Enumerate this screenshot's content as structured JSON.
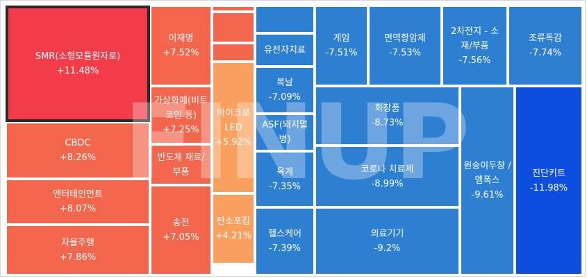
{
  "chart_data": {
    "type": "treemap",
    "watermark": "FINUP",
    "colors": {
      "up_strong": "#f4414b",
      "up": "#f3664e",
      "up_mid": "#f58a4f",
      "up_light": "#f9a05e",
      "down": "#2d7fd1",
      "down_strong": "#0d4ee0"
    },
    "items": [
      {
        "name": "SMR(소형모듈원자로)",
        "change": "+11.48%",
        "value": 11.48,
        "color": "#f23c49",
        "selected": true
      },
      {
        "name": "CBDC",
        "change": "+8.26%",
        "value": 8.26,
        "color": "#f3664e"
      },
      {
        "name": "엔터테인먼트",
        "change": "+8.07%",
        "value": 8.07,
        "color": "#f3664e"
      },
      {
        "name": "자율주행",
        "change": "+7.86%",
        "value": 7.86,
        "color": "#f3664e"
      },
      {
        "name": "이재명",
        "change": "+7.52%",
        "value": 7.52,
        "color": "#f3664e"
      },
      {
        "name": "가상화폐(비트코인 등)",
        "change": "+7.25%",
        "value": 7.25,
        "color": "#f3664e"
      },
      {
        "name": "반도체 재료/부품",
        "change": "",
        "value": null,
        "color": "#f3664e"
      },
      {
        "name": "송전",
        "change": "+7.05%",
        "value": 7.05,
        "color": "#f3664e"
      },
      {
        "name": "",
        "change": "",
        "value": null,
        "color": "#f3664e"
      },
      {
        "name": "",
        "change": "",
        "value": null,
        "color": "#f3664e"
      },
      {
        "name": "",
        "change": "",
        "value": null,
        "color": "#f3664e"
      },
      {
        "name": "마이크로LED",
        "change": "+5.92%",
        "value": 5.92,
        "color": "#f9a05e"
      },
      {
        "name": "탄소포집",
        "change": "+4.21%",
        "value": 4.21,
        "color": "#f9a05e"
      },
      {
        "name": "",
        "change": "",
        "value": null,
        "color": "#2d7fd1"
      },
      {
        "name": "유전자치료",
        "change": "",
        "value": null,
        "color": "#2d7fd1"
      },
      {
        "name": "복날",
        "change": "-7.09%",
        "value": -7.09,
        "color": "#2d7fd1"
      },
      {
        "name": "ASF(돼지열병)",
        "change": "",
        "value": null,
        "color": "#2d7fd1"
      },
      {
        "name": "육계",
        "change": "-7.35%",
        "value": -7.35,
        "color": "#2d7fd1"
      },
      {
        "name": "헬스케어",
        "change": "-7.39%",
        "value": -7.39,
        "color": "#2d7fd1"
      },
      {
        "name": "게임",
        "change": "-7.51%",
        "value": -7.51,
        "color": "#2d7fd1"
      },
      {
        "name": "면역항암제",
        "change": "-7.53%",
        "value": -7.53,
        "color": "#2d7fd1"
      },
      {
        "name": "2차전지 - 소재/부품",
        "change": "-7.56%",
        "value": -7.56,
        "color": "#2d7fd1"
      },
      {
        "name": "조류독감",
        "change": "-7.74%",
        "value": -7.74,
        "color": "#2d7fd1"
      },
      {
        "name": "화장품",
        "change": "-8.73%",
        "value": -8.73,
        "color": "#2d7fd1"
      },
      {
        "name": "코로나 치료제",
        "change": "-8.99%",
        "value": -8.99,
        "color": "#2d7fd1"
      },
      {
        "name": "의료기기",
        "change": "-9.2%",
        "value": -9.2,
        "color": "#2d7fd1"
      },
      {
        "name": "원숭이두창 / 엠폭스",
        "change": "-9.61%",
        "value": -9.61,
        "color": "#2d7fd1"
      },
      {
        "name": "진단키트",
        "change": "-11.98%",
        "value": -11.98,
        "color": "#0d4ee0"
      }
    ]
  }
}
